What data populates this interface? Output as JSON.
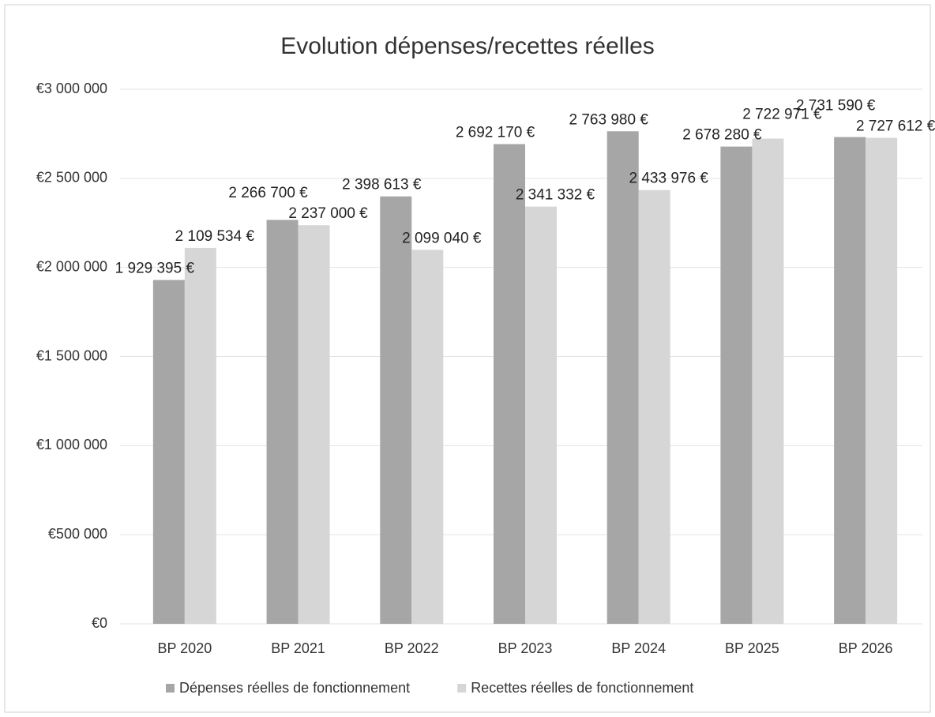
{
  "chart_data": {
    "type": "bar",
    "title": "Evolution dépenses/recettes réelles",
    "categories": [
      "BP 2020",
      "BP 2021",
      "BP 2022",
      "BP 2023",
      "BP 2024",
      "BP 2025",
      "BP 2026"
    ],
    "series": [
      {
        "name": "Dépenses réelles de fonctionnement",
        "color": "#a6a6a6",
        "values": [
          1929395,
          2266700,
          2398613,
          2692170,
          2763980,
          2678280,
          2731590
        ],
        "value_labels": [
          "1 929 395 €",
          "2 266 700 €",
          "2 398 613 €",
          "2 692 170 €",
          "2 763 980 €",
          "2 678 280 €",
          "2 731 590 €"
        ]
      },
      {
        "name": "Recettes réelles de fonctionnement",
        "color": "#d6d6d6",
        "values": [
          2109534,
          2237000,
          2099040,
          2341332,
          2433976,
          2722971,
          2727612
        ],
        "value_labels": [
          "2 109 534 €",
          "2 237 000 €",
          "2 099 040 €",
          "2 341 332 €",
          "2 433 976 €",
          "2 722 971 €",
          "2 727 612 €"
        ]
      }
    ],
    "ylim": [
      0,
      3000000
    ],
    "yticks": [
      {
        "value": 0,
        "label": "€0"
      },
      {
        "value": 500000,
        "label": "€500 000"
      },
      {
        "value": 1000000,
        "label": "€1 000 000"
      },
      {
        "value": 1500000,
        "label": "€1 500 000"
      },
      {
        "value": 2000000,
        "label": "€2 000 000"
      },
      {
        "value": 2500000,
        "label": "€2 500 000"
      },
      {
        "value": 3000000,
        "label": "€3 000 000"
      }
    ],
    "grid": true,
    "legend": "bottom"
  }
}
